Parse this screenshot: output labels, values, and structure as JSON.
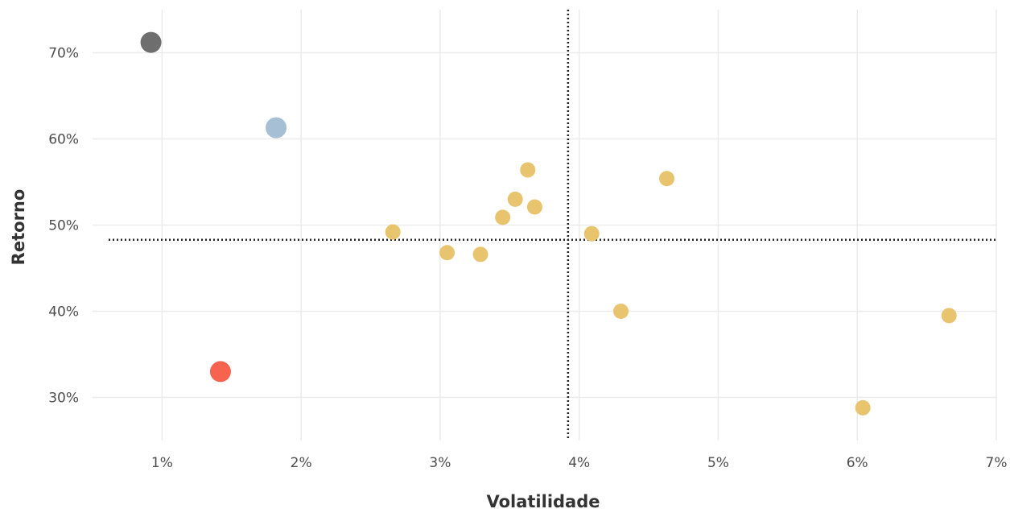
{
  "chart_data": {
    "type": "scatter",
    "xlabel": "Volatilidade",
    "ylabel": "Retorno",
    "xlim": [
      0.5,
      7.0
    ],
    "ylim": [
      25,
      75
    ],
    "x_ticks": [
      {
        "value": 1,
        "label": "1%"
      },
      {
        "value": 2,
        "label": "2%"
      },
      {
        "value": 3,
        "label": "3%"
      },
      {
        "value": 4,
        "label": "4%"
      },
      {
        "value": 5,
        "label": "5%"
      },
      {
        "value": 6,
        "label": "6%"
      },
      {
        "value": 7,
        "label": "7%"
      }
    ],
    "y_ticks": [
      {
        "value": 30,
        "label": "30%"
      },
      {
        "value": 40,
        "label": "40%"
      },
      {
        "value": 50,
        "label": "50%"
      },
      {
        "value": 60,
        "label": "60%"
      },
      {
        "value": 70,
        "label": "70%"
      }
    ],
    "grid": true,
    "legend": "none",
    "reference_lines": {
      "x": 3.92,
      "y": 48.3,
      "style": "dotted",
      "color": "#222222"
    },
    "points": [
      {
        "x": 0.92,
        "y": 71.2,
        "color": "#6e6e6e"
      },
      {
        "x": 1.82,
        "y": 61.3,
        "color": "#a6bfd5"
      },
      {
        "x": 1.42,
        "y": 33.0,
        "color": "#f7634f"
      },
      {
        "x": 2.66,
        "y": 49.2,
        "color": "#e8c46f"
      },
      {
        "x": 3.05,
        "y": 46.8,
        "color": "#e8c46f"
      },
      {
        "x": 3.29,
        "y": 46.6,
        "color": "#e8c46f"
      },
      {
        "x": 3.45,
        "y": 50.9,
        "color": "#e8c46f"
      },
      {
        "x": 3.54,
        "y": 53.0,
        "color": "#e8c46f"
      },
      {
        "x": 3.63,
        "y": 56.4,
        "color": "#e8c46f"
      },
      {
        "x": 3.68,
        "y": 52.1,
        "color": "#e8c46f"
      },
      {
        "x": 4.09,
        "y": 49.0,
        "color": "#e8c46f"
      },
      {
        "x": 4.3,
        "y": 40.0,
        "color": "#e8c46f"
      },
      {
        "x": 4.63,
        "y": 55.4,
        "color": "#e8c46f"
      },
      {
        "x": 6.04,
        "y": 28.8,
        "color": "#e8c46f"
      },
      {
        "x": 6.66,
        "y": 39.5,
        "color": "#e8c46f"
      }
    ]
  }
}
